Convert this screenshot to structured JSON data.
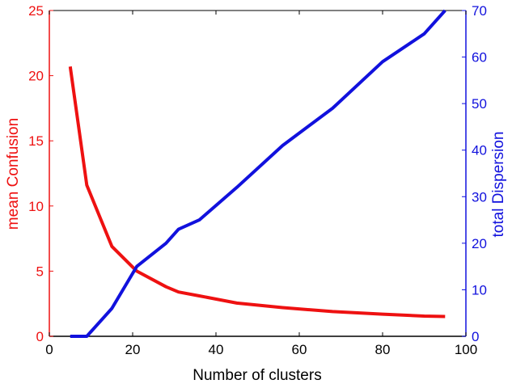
{
  "chart_data": {
    "type": "line",
    "title": "",
    "xlabel": "Number of clusters",
    "ylabel_left": "mean Confusion",
    "ylabel_right": "total Dispersion",
    "xlim": [
      0,
      100
    ],
    "ylim_left": [
      0,
      25
    ],
    "ylim_right": [
      0,
      70
    ],
    "xticks": [
      "0",
      "20",
      "40",
      "60",
      "80",
      "100"
    ],
    "yticks_left": [
      "0",
      "5",
      "10",
      "15",
      "20",
      "25"
    ],
    "yticks_right": [
      "0",
      "10",
      "20",
      "30",
      "40",
      "50",
      "60",
      "70"
    ],
    "grid": false,
    "legend": "none",
    "colors": {
      "left_axis": "#ee1111",
      "right_axis": "#1111dd",
      "frame": "#000000"
    },
    "series": [
      {
        "axis": "left",
        "color": "#ee1111",
        "x": [
          5,
          9,
          15,
          21,
          28,
          31,
          36,
          45,
          56,
          68,
          80,
          90,
          95
        ],
        "y": [
          20.7,
          11.6,
          6.9,
          5.0,
          3.8,
          3.4,
          3.1,
          2.55,
          2.2,
          1.9,
          1.7,
          1.55,
          1.52
        ]
      },
      {
        "axis": "right",
        "color": "#1111dd",
        "x": [
          5,
          9,
          15,
          21,
          28,
          31,
          36,
          45,
          56,
          68,
          80,
          90,
          95
        ],
        "y": [
          0,
          0,
          6,
          15,
          20,
          23,
          25,
          32,
          41,
          49,
          59,
          65,
          70
        ]
      }
    ]
  }
}
